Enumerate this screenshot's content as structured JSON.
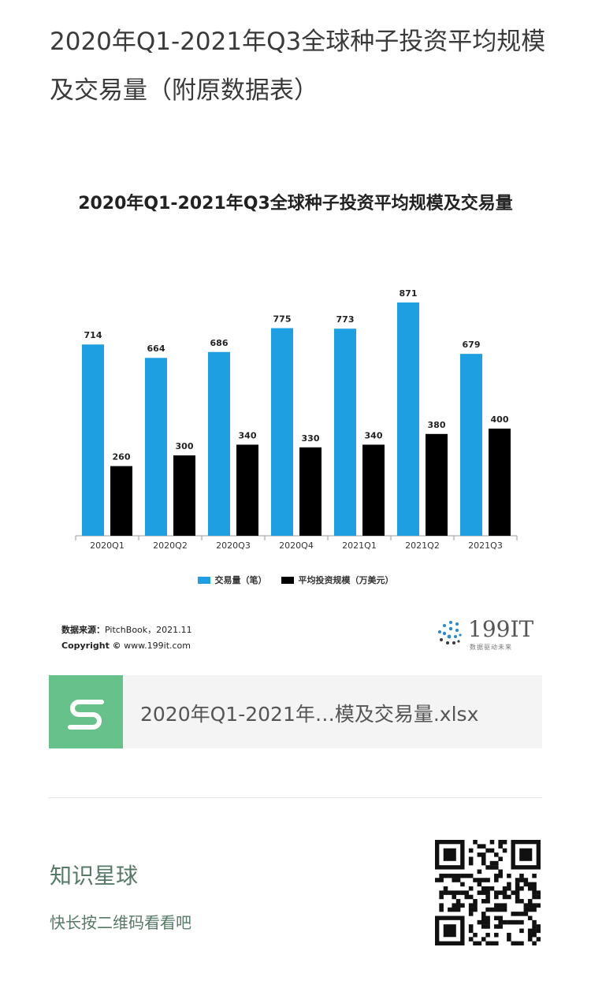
{
  "post": {
    "title": "2020年Q1-2021年Q3全球种子投资平均规模及交易量（附原数据表）"
  },
  "chart_data": {
    "type": "bar",
    "title": "2020年Q1-2021年Q3全球种子投资平均规模及交易量",
    "categories": [
      "2020Q1",
      "2020Q2",
      "2020Q3",
      "2020Q4",
      "2021Q1",
      "2021Q2",
      "2021Q3"
    ],
    "series": [
      {
        "name": "交易量（笔）",
        "color": "#1e9fe1",
        "values": [
          714,
          664,
          686,
          775,
          773,
          871,
          679
        ]
      },
      {
        "name": "平均投资规模（万美元）",
        "color": "#000000",
        "values": [
          260,
          300,
          340,
          330,
          340,
          380,
          400
        ]
      }
    ],
    "ylim": [
      0,
      1000
    ],
    "grid": false,
    "legend_position": "bottom"
  },
  "source": {
    "label": "数据来源：",
    "text": "PitchBook，2021.11",
    "copyright_label": "Copyright ©",
    "copyright_text": "www.199it.com"
  },
  "logo": {
    "name": "199IT",
    "tagline": "数据驱动未来",
    "colors": [
      "#2a8ac9",
      "#3a3a3a"
    ]
  },
  "attachment": {
    "icon": "s-sheet-icon",
    "icon_color": "#66c18b",
    "filename": "2020年Q1-2021年…模及交易量.xlsx"
  },
  "footer": {
    "title": "知识星球",
    "hint": "快长按二维码看看吧",
    "qr": "qr-code-icon"
  }
}
